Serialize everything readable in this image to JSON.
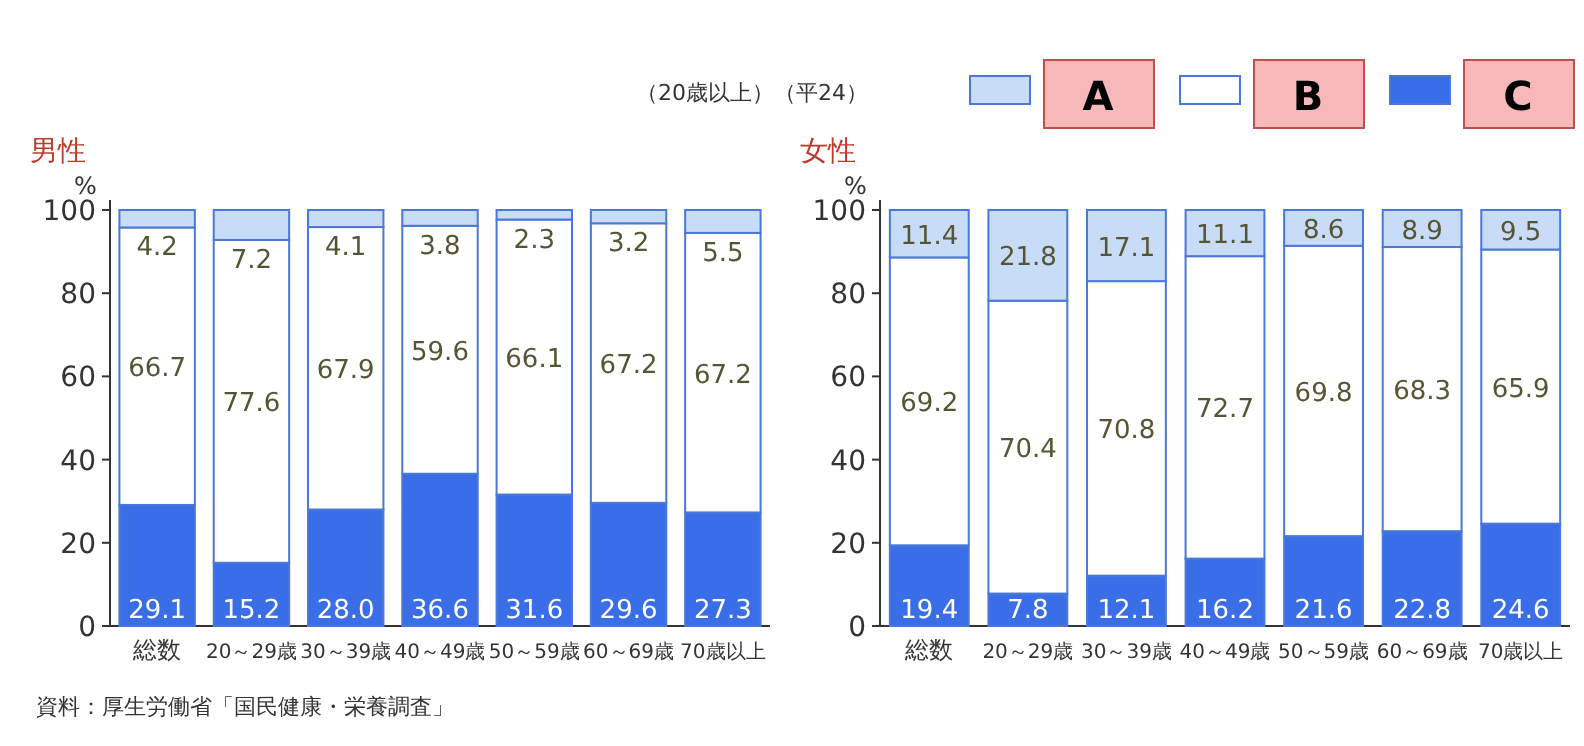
{
  "chart_data": [
    {
      "type": "bar",
      "stacked": true,
      "title": "男性",
      "ylabel": "%",
      "categories": [
        "総数",
        "20～29歳",
        "30～39歳",
        "40～49歳",
        "50～59歳",
        "60～69歳",
        "70歳以上"
      ],
      "ylim": [
        0,
        100
      ],
      "yticks": [
        0,
        20,
        40,
        60,
        80,
        100
      ],
      "legend": false,
      "series": [
        {
          "color": "#3a6ee8",
          "values": [
            29.1,
            15.2,
            28.0,
            36.6,
            31.6,
            29.6,
            27.3
          ],
          "value_labels": [
            "29.1",
            "15.2",
            "28.0",
            "36.6",
            "31.6",
            "29.6",
            "27.3"
          ]
        },
        {
          "color": "#ffffff",
          "values": [
            66.7,
            77.6,
            67.9,
            59.6,
            66.1,
            67.2,
            67.2
          ],
          "value_labels": [
            "66.7",
            "77.6",
            "67.9",
            "59.6",
            "66.1",
            "67.2",
            "67.2"
          ]
        },
        {
          "color": "#c8dcf8",
          "values": [
            4.2,
            7.2,
            4.1,
            3.8,
            2.3,
            3.2,
            5.5
          ],
          "value_labels": [
            "4.2",
            "7.2",
            "4.1",
            "3.8",
            "2.3",
            "3.2",
            "5.5"
          ]
        }
      ],
      "subtitle": "（20歳以上）（平24）",
      "annotations": [
        "資料：厚生労働省「国民健康・栄養調査」"
      ]
    },
    {
      "type": "bar",
      "stacked": true,
      "title": "女性",
      "ylabel": "%",
      "categories": [
        "総数",
        "20～29歳",
        "30～39歳",
        "40～49歳",
        "50～59歳",
        "60～69歳",
        "70歳以上"
      ],
      "ylim": [
        0,
        100
      ],
      "yticks": [
        0,
        20,
        40,
        60,
        80,
        100
      ],
      "legend": "top right",
      "series": [
        {
          "name": "C",
          "color": "#3a6ee8",
          "values": [
            19.4,
            7.8,
            12.1,
            16.2,
            21.6,
            22.8,
            24.6
          ],
          "value_labels": [
            "19.4",
            "7.8",
            "12.1",
            "16.2",
            "21.6",
            "22.8",
            "24.6"
          ]
        },
        {
          "name": "B",
          "color": "#ffffff",
          "values": [
            69.2,
            70.4,
            70.8,
            72.7,
            69.8,
            68.3,
            65.9
          ],
          "value_labels": [
            "69.2",
            "70.4",
            "70.8",
            "72.7",
            "69.8",
            "68.3",
            "65.9"
          ]
        },
        {
          "name": "A",
          "color": "#c8dcf8",
          "values": [
            11.4,
            21.8,
            17.1,
            11.1,
            8.6,
            8.9,
            9.5
          ],
          "value_labels": [
            "11.4",
            "21.8",
            "17.1",
            "11.1",
            "8.6",
            "8.9",
            "9.5"
          ]
        }
      ]
    }
  ]
}
